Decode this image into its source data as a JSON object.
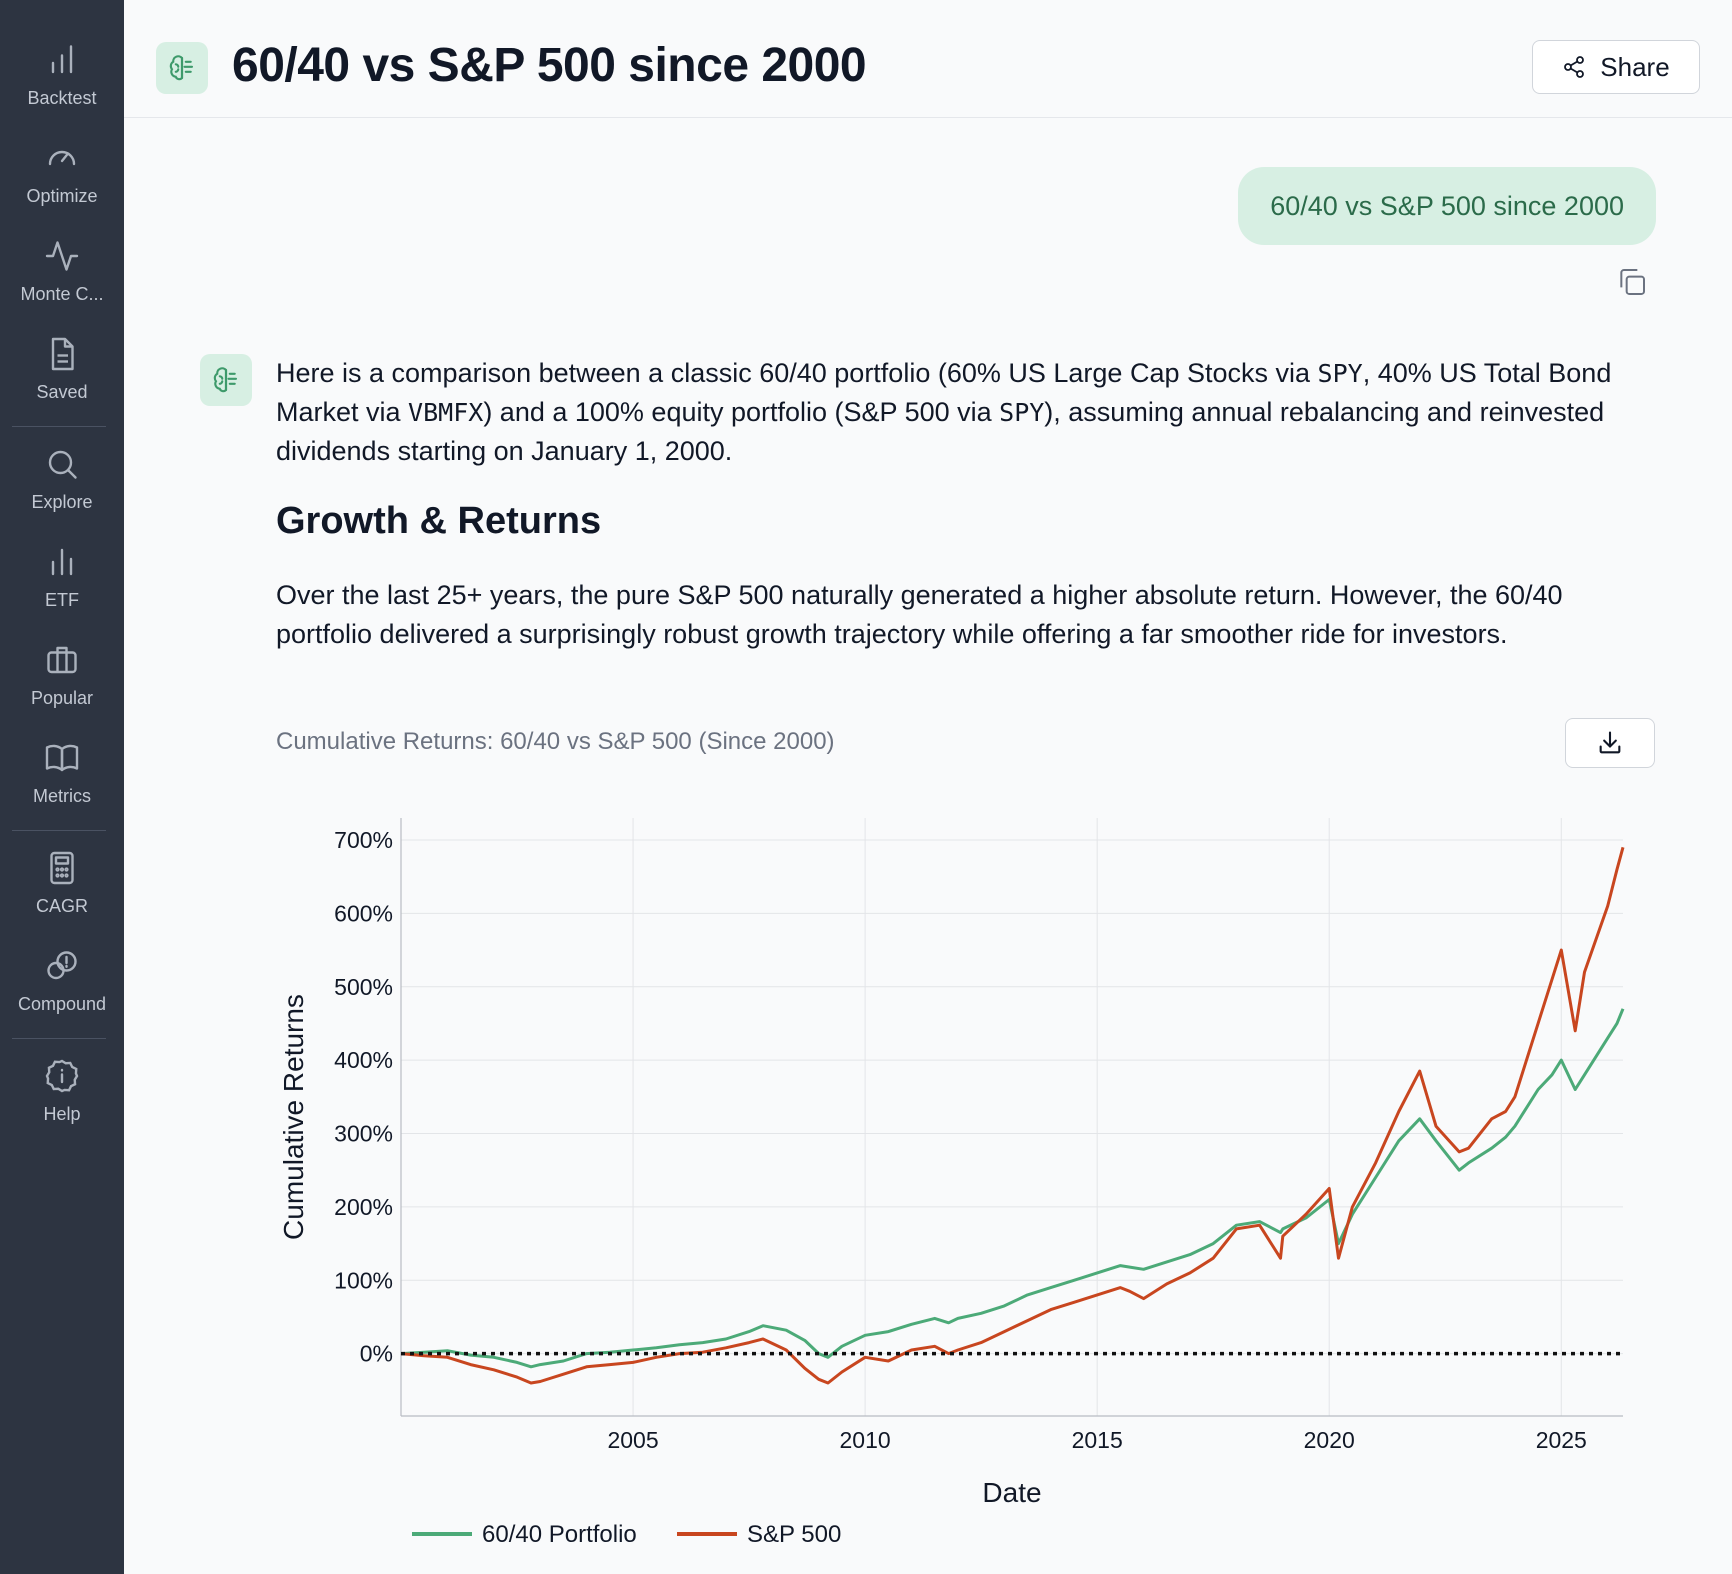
{
  "sidebar": {
    "items": [
      {
        "label": "Backtest",
        "icon": "bar-chart-icon"
      },
      {
        "label": "Optimize",
        "icon": "gauge-icon"
      },
      {
        "label": "Monte C...",
        "icon": "pulse-icon"
      },
      {
        "label": "Saved",
        "icon": "document-icon"
      },
      {
        "label": "Explore",
        "icon": "search-icon"
      },
      {
        "label": "ETF",
        "icon": "bar-chart-icon"
      },
      {
        "label": "Popular",
        "icon": "briefcase-icon"
      },
      {
        "label": "Metrics",
        "icon": "book-icon"
      },
      {
        "label": "CAGR",
        "icon": "calculator-icon"
      },
      {
        "label": "Compound",
        "icon": "coins-icon"
      },
      {
        "label": "Help",
        "icon": "info-icon"
      }
    ]
  },
  "header": {
    "title": "60/40 vs S&P 500 since 2000",
    "share_label": "Share"
  },
  "conversation": {
    "user_message": "60/40 vs S&P 500 since 2000",
    "intro": {
      "t1": "Here is a comparison between a classic 60/40 portfolio (60% US Large Cap Stocks via ",
      "c1": "SPY",
      "t2": ", 40% US Total Bond Market via ",
      "c2": "VBMFX",
      "t3": ") and a 100% equity portfolio (S&P 500 via ",
      "c3": "SPY",
      "t4": "), assuming annual rebalancing and reinvested dividends starting on January 1, 2000."
    },
    "heading": "Growth & Returns",
    "paragraph": "Over the last 25+ years, the pure S&P 500 naturally generated a higher absolute return. However, the 60/40 portfolio delivered a surprisingly robust growth trajectory while offering a far smoother ride for investors.",
    "chart_caption": "Cumulative Returns: 60/40 vs S&P 500 (Since 2000)"
  },
  "colors": {
    "accent_green": "#4caa78",
    "accent_red": "#c8461f",
    "sidebar_bg": "#2d3441"
  },
  "chart_data": {
    "type": "line",
    "title": "",
    "xlabel": "Date",
    "ylabel": "Cumulative Returns",
    "xlim": [
      2000.0,
      2026.33
    ],
    "ylim": [
      -85,
      730
    ],
    "xticks": [
      {
        "value": 2005,
        "label": "2005"
      },
      {
        "value": 2010,
        "label": "2010"
      },
      {
        "value": 2015,
        "label": "2015"
      },
      {
        "value": 2020,
        "label": "2020"
      },
      {
        "value": 2025,
        "label": "2025"
      }
    ],
    "yticks": [
      {
        "value": 0,
        "label": "0%"
      },
      {
        "value": 100,
        "label": "100%"
      },
      {
        "value": 200,
        "label": "200%"
      },
      {
        "value": 300,
        "label": "300%"
      },
      {
        "value": 400,
        "label": "400%"
      },
      {
        "value": 500,
        "label": "500%"
      },
      {
        "value": 600,
        "label": "600%"
      },
      {
        "value": 700,
        "label": "700%"
      }
    ],
    "grid": true,
    "legend_position": "bottom-left",
    "reference_line": {
      "y": 0,
      "style": "dotted"
    },
    "series": [
      {
        "name": "60/40 Portfolio",
        "color": "#4caa78",
        "x": [
          2000.0,
          2000.5,
          2001.0,
          2001.5,
          2002.0,
          2002.5,
          2002.8,
          2003.0,
          2003.5,
          2004.0,
          2004.5,
          2005.0,
          2005.5,
          2006.0,
          2006.5,
          2007.0,
          2007.5,
          2007.8,
          2008.3,
          2008.7,
          2009.0,
          2009.2,
          2009.5,
          2010.0,
          2010.5,
          2011.0,
          2011.5,
          2011.8,
          2012.0,
          2012.5,
          2013.0,
          2013.5,
          2014.0,
          2014.5,
          2015.0,
          2015.5,
          2015.7,
          2016.0,
          2016.5,
          2017.0,
          2017.5,
          2018.0,
          2018.5,
          2018.95,
          2019.0,
          2019.5,
          2020.0,
          2020.2,
          2020.5,
          2021.0,
          2021.5,
          2021.95,
          2022.3,
          2022.8,
          2023.0,
          2023.5,
          2023.8,
          2024.0,
          2024.5,
          2024.8,
          2025.0,
          2025.3,
          2025.5,
          2026.0,
          2026.2,
          2026.33
        ],
        "y": [
          0,
          2,
          4,
          -2,
          -5,
          -12,
          -18,
          -15,
          -10,
          0,
          2,
          5,
          8,
          12,
          15,
          20,
          30,
          38,
          32,
          18,
          0,
          -5,
          10,
          25,
          30,
          40,
          48,
          42,
          48,
          55,
          65,
          80,
          90,
          100,
          110,
          120,
          118,
          115,
          125,
          135,
          150,
          175,
          180,
          165,
          170,
          185,
          210,
          150,
          190,
          240,
          290,
          320,
          290,
          250,
          260,
          280,
          295,
          310,
          360,
          380,
          400,
          360,
          380,
          430,
          450,
          470
        ]
      },
      {
        "name": "S&P 500",
        "color": "#c8461f",
        "x": [
          2000.0,
          2000.5,
          2001.0,
          2001.5,
          2002.0,
          2002.5,
          2002.8,
          2003.0,
          2003.5,
          2004.0,
          2004.5,
          2005.0,
          2005.5,
          2006.0,
          2006.5,
          2007.0,
          2007.5,
          2007.8,
          2008.3,
          2008.7,
          2009.0,
          2009.2,
          2009.5,
          2010.0,
          2010.5,
          2011.0,
          2011.5,
          2011.8,
          2012.0,
          2012.5,
          2013.0,
          2013.5,
          2014.0,
          2014.5,
          2015.0,
          2015.5,
          2015.7,
          2016.0,
          2016.5,
          2017.0,
          2017.5,
          2018.0,
          2018.5,
          2018.95,
          2019.0,
          2019.5,
          2020.0,
          2020.2,
          2020.5,
          2021.0,
          2021.5,
          2021.95,
          2022.3,
          2022.8,
          2023.0,
          2023.5,
          2023.8,
          2024.0,
          2024.5,
          2024.8,
          2025.0,
          2025.3,
          2025.5,
          2026.0,
          2026.2,
          2026.33
        ],
        "y": [
          0,
          -3,
          -5,
          -15,
          -22,
          -32,
          -40,
          -38,
          -28,
          -18,
          -15,
          -12,
          -5,
          0,
          2,
          8,
          15,
          20,
          5,
          -20,
          -35,
          -40,
          -25,
          -5,
          -10,
          5,
          10,
          0,
          5,
          15,
          30,
          45,
          60,
          70,
          80,
          90,
          85,
          75,
          95,
          110,
          130,
          170,
          175,
          130,
          160,
          190,
          225,
          130,
          200,
          260,
          330,
          385,
          310,
          275,
          280,
          320,
          330,
          350,
          450,
          510,
          550,
          440,
          520,
          610,
          660,
          690
        ]
      }
    ]
  }
}
